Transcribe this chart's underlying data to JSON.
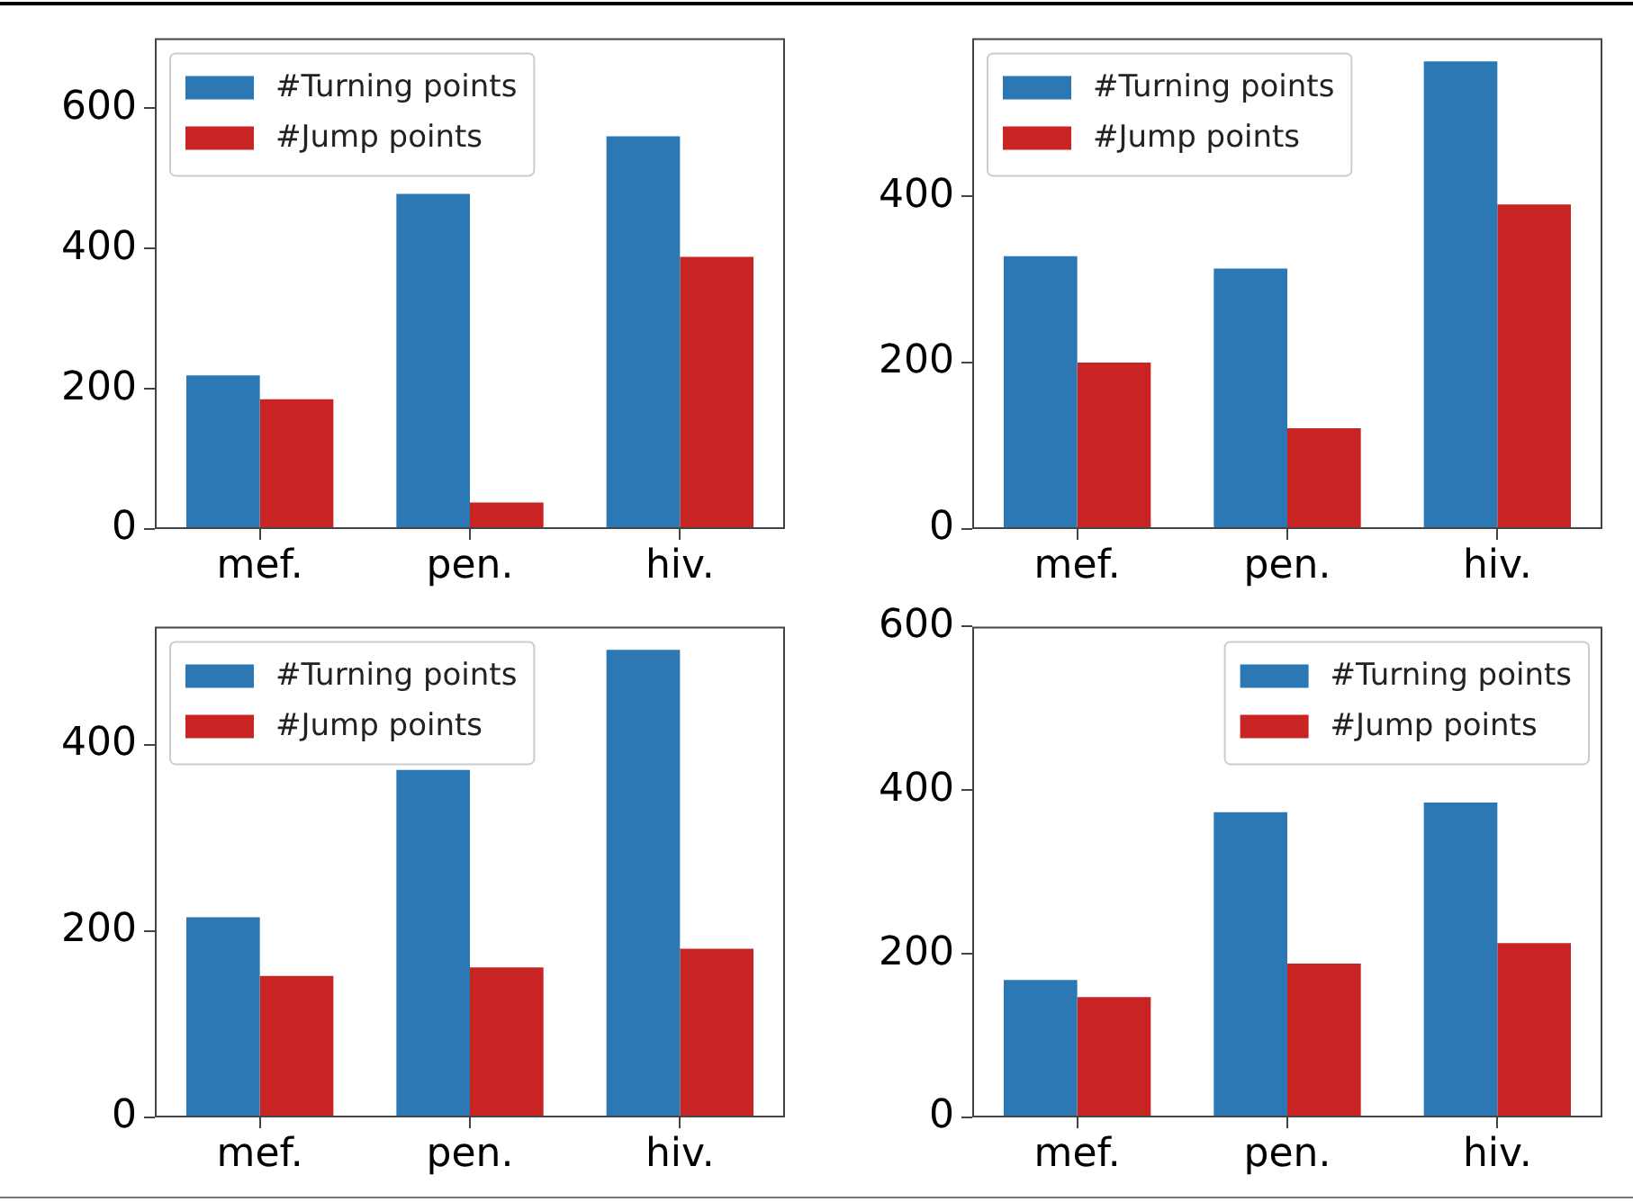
{
  "chart_data": [
    {
      "type": "bar",
      "categories": [
        "mef.",
        "pen.",
        "hiv."
      ],
      "series": [
        {
          "name": "#Turning points",
          "color": "#2b78b5",
          "values": [
            219,
            478,
            560
          ]
        },
        {
          "name": "#Jump points",
          "color": "#c92424",
          "values": [
            185,
            38,
            388
          ]
        }
      ],
      "ylim": [
        0,
        700
      ],
      "yticks": [
        0,
        200,
        400,
        600
      ],
      "grid": false,
      "legend": "top left"
    },
    {
      "type": "bar",
      "categories": [
        "mef.",
        "pen.",
        "hiv."
      ],
      "series": [
        {
          "name": "#Turning points",
          "color": "#2b78b5",
          "values": [
            328,
            313,
            562
          ]
        },
        {
          "name": "#Jump points",
          "color": "#c92424",
          "values": [
            200,
            121,
            390
          ]
        }
      ],
      "ylim": [
        0,
        590
      ],
      "yticks": [
        0,
        200,
        400
      ],
      "grid": false,
      "legend": "top left"
    },
    {
      "type": "bar",
      "categories": [
        "mef.",
        "pen.",
        "hiv."
      ],
      "series": [
        {
          "name": "#Turning points",
          "color": "#2b78b5",
          "values": [
            215,
            373,
            502
          ]
        },
        {
          "name": "#Jump points",
          "color": "#c92424",
          "values": [
            152,
            161,
            181
          ]
        }
      ],
      "ylim": [
        0,
        527
      ],
      "yticks": [
        0,
        200,
        400
      ],
      "grid": false,
      "legend": "top left"
    },
    {
      "type": "bar",
      "categories": [
        "mef.",
        "pen.",
        "hiv."
      ],
      "series": [
        {
          "name": "#Turning points",
          "color": "#2b78b5",
          "values": [
            168,
            373,
            385
          ]
        },
        {
          "name": "#Jump points",
          "color": "#c92424",
          "values": [
            147,
            188,
            213
          ]
        }
      ],
      "ylim": [
        0,
        600
      ],
      "yticks": [
        0,
        200,
        400,
        600
      ],
      "grid": false,
      "legend": "top right"
    }
  ]
}
